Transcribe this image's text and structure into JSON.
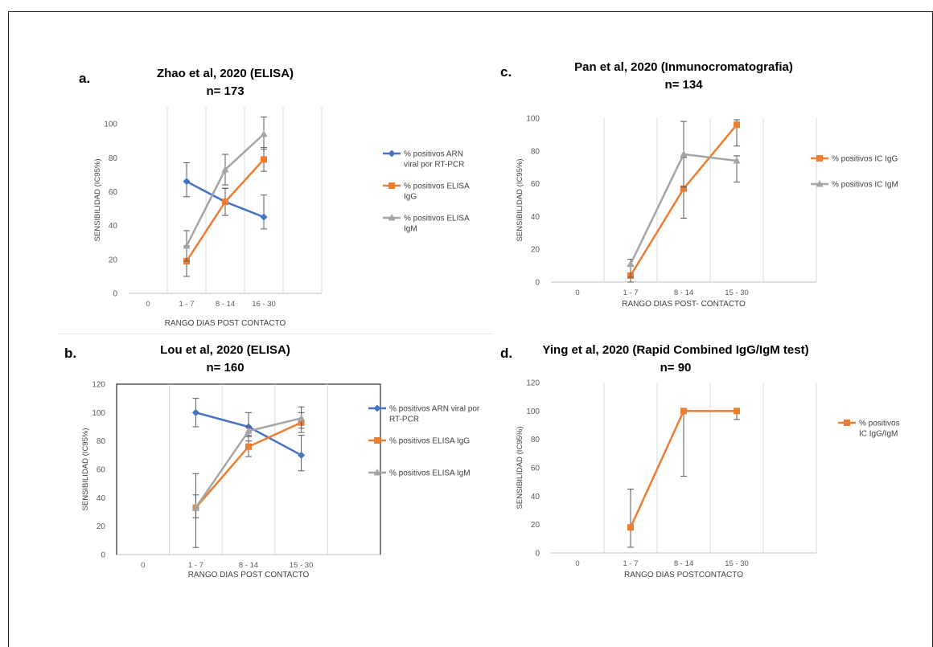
{
  "chart_data": [
    {
      "id": "a",
      "type": "line",
      "panel_label": "a.",
      "title": "Zhao et al, 2020 (ELISA)",
      "subtitle": "n= 173",
      "xlabel": "RANGO DIAS POST CONTACTO",
      "ylabel": "SENSIBILIDAD (IC95%)",
      "categories": [
        "0",
        "1-7",
        "8-14",
        "16-30",
        ""
      ],
      "ylim": [
        0,
        110
      ],
      "yticks": [
        0,
        20,
        40,
        60,
        80,
        100
      ],
      "grid": "vertical",
      "plot_border": false,
      "legend_position": "right",
      "series": [
        {
          "name": "% positivos ARN viral por RT-PCR",
          "legend_lines": [
            "% positivos ARN",
            "viral por RT-PCR"
          ],
          "color": "#4472C4",
          "marker": "diamond",
          "values": [
            null,
            66,
            54,
            45,
            null
          ],
          "err_low": [
            null,
            57,
            46,
            38,
            null
          ],
          "err_high": [
            null,
            77,
            62,
            58,
            null
          ]
        },
        {
          "name": "% positivos ELISA IgG",
          "legend_lines": [
            "% positivos ELISA",
            "IgG"
          ],
          "color": "#ED7D31",
          "marker": "square",
          "values": [
            null,
            19,
            54,
            79,
            null
          ],
          "err_low": [
            null,
            10,
            46,
            72,
            null
          ],
          "err_high": [
            null,
            28,
            62,
            86,
            null
          ]
        },
        {
          "name": "% positivos ELISA IgM",
          "legend_lines": [
            "% positivos ELISA",
            "IgM"
          ],
          "color": "#A5A5A5",
          "marker": "triangle",
          "values": [
            null,
            28,
            73,
            94,
            null
          ],
          "err_low": [
            null,
            19,
            64,
            85,
            null
          ],
          "err_high": [
            null,
            37,
            82,
            104,
            null
          ]
        }
      ]
    },
    {
      "id": "b",
      "type": "line",
      "panel_label": "b.",
      "title": "Lou et al, 2020 (ELISA)",
      "subtitle": "n= 160",
      "xlabel": "RANGO DIAS POST CONTACTO",
      "ylabel": "SENSIBILIDAD (IC95%)",
      "categories": [
        "0",
        "1-7",
        "8-14",
        "15-30",
        ""
      ],
      "ylim": [
        0,
        120
      ],
      "yticks": [
        0,
        20,
        40,
        60,
        80,
        100,
        120
      ],
      "grid": "vertical",
      "plot_border": true,
      "legend_position": "right",
      "series": [
        {
          "name": "% positivos ARN viral por RT-PCR",
          "legend_lines": [
            "% positivos ARN viral por",
            "RT-PCR"
          ],
          "color": "#4472C4",
          "marker": "diamond",
          "values": [
            null,
            100,
            90,
            70,
            null
          ],
          "err_low": [
            null,
            90,
            80,
            59,
            null
          ],
          "err_high": [
            null,
            110,
            100,
            84,
            null
          ]
        },
        {
          "name": "% positivos ELISA IgG",
          "legend_lines": [
            "% positivos ELISA IgG"
          ],
          "color": "#ED7D31",
          "marker": "square",
          "values": [
            null,
            33,
            76,
            93,
            null
          ],
          "err_low": [
            null,
            5,
            69,
            86,
            null
          ],
          "err_high": [
            null,
            57,
            83,
            100,
            null
          ]
        },
        {
          "name": "% positivos ELISA IgM",
          "legend_lines": [
            "% positivos ELISA IgM"
          ],
          "color": "#A5A5A5",
          "marker": "triangle",
          "values": [
            null,
            33,
            87,
            96,
            null
          ],
          "err_low": [
            null,
            26,
            84,
            89,
            null
          ],
          "err_high": [
            null,
            42,
            90,
            104,
            null
          ]
        }
      ]
    },
    {
      "id": "c",
      "type": "line",
      "panel_label": "c.",
      "title": "Pan et al, 2020 (Inmunocromatografia)",
      "subtitle": "n= 134",
      "xlabel": "RANGO DIAS POST- CONTACTO",
      "ylabel": "SENSIBILIDAD (IC95%)",
      "categories": [
        "0",
        "1-7",
        "8-14",
        "15-30",
        ""
      ],
      "ylim": [
        0,
        100
      ],
      "yticks": [
        0,
        20,
        40,
        60,
        80,
        100
      ],
      "grid": "vertical",
      "plot_border": false,
      "legend_position": "right",
      "series": [
        {
          "name": "% positivos IC IgG",
          "legend_lines": [
            "% positivos IC IgG"
          ],
          "color": "#ED7D31",
          "marker": "square",
          "values": [
            null,
            4,
            57,
            96,
            null
          ],
          "err_low": [
            null,
            0,
            39,
            83,
            null
          ],
          "err_high": [
            null,
            10,
            76,
            99,
            null
          ]
        },
        {
          "name": "% positivos IC IgM",
          "legend_lines": [
            "% positivos IC IgM"
          ],
          "color": "#A5A5A5",
          "marker": "triangle",
          "values": [
            null,
            11,
            78,
            74,
            null
          ],
          "err_low": [
            null,
            3,
            58,
            61,
            null
          ],
          "err_high": [
            null,
            14,
            98,
            77,
            null
          ]
        }
      ]
    },
    {
      "id": "d",
      "type": "line",
      "panel_label": "d.",
      "title": "Ying et al, 2020 (Rapid Combined IgG/IgM test)",
      "subtitle": "n= 90",
      "xlabel": "RANGO DIAS POSTCONTACTO",
      "ylabel": "SENSIBILIDAD (IC95%)",
      "categories": [
        "0",
        "1-7",
        "8-14",
        "15-30",
        ""
      ],
      "ylim": [
        0,
        120
      ],
      "yticks": [
        0,
        20,
        40,
        60,
        80,
        100,
        120
      ],
      "grid": "vertical",
      "plot_border": false,
      "legend_position": "right",
      "series": [
        {
          "name": "% positivos IC IgG/IgM",
          "legend_lines": [
            "% positivos",
            "IC IgG/IgM"
          ],
          "color": "#ED7D31",
          "marker": "square",
          "values": [
            null,
            18,
            100,
            100,
            null
          ],
          "err_low": [
            null,
            4,
            54,
            94,
            null
          ],
          "err_high": [
            null,
            45,
            100,
            100,
            null
          ]
        }
      ]
    }
  ]
}
